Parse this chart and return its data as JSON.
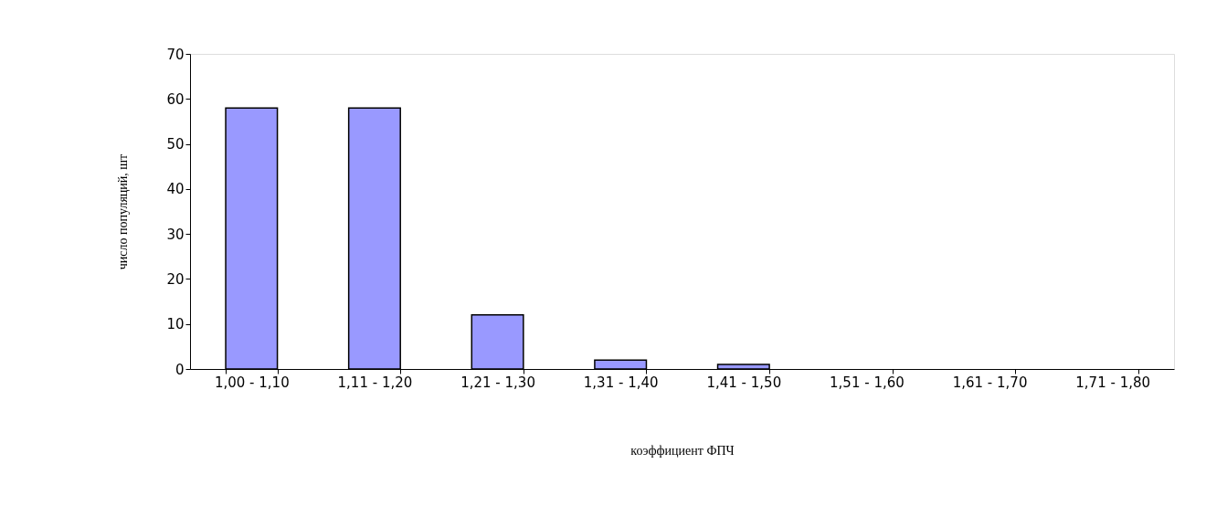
{
  "chart_data": {
    "type": "bar",
    "xlabel": "коэффициент ФПЧ",
    "ylabel": "число популяций, шт",
    "categories": [
      "1,00 - 1,10",
      "1,11 - 1,20",
      "1,21 - 1,30",
      "1,31 - 1,40",
      "1,41 - 1,50",
      "1,51 - 1,60",
      "1,61 - 1,70",
      "1,71 - 1,80"
    ],
    "values": [
      58,
      58,
      12,
      2,
      1,
      0,
      0,
      0
    ],
    "color": "#9999ff",
    "ylim": [
      0,
      70
    ],
    "yticks": [
      0,
      10,
      20,
      30,
      40,
      50,
      60,
      70
    ],
    "grid": false
  }
}
